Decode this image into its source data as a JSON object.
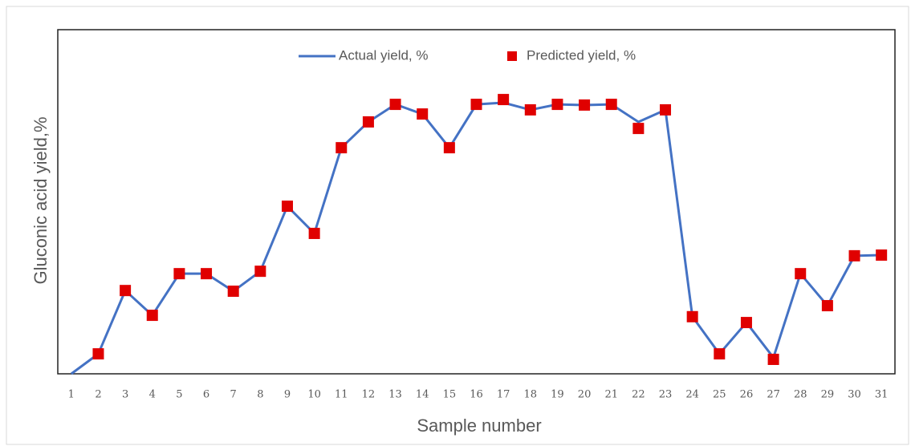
{
  "chart_data": {
    "type": "line_scatter",
    "x_label": "Sample number",
    "y_label": "Gluconic acid yield,%",
    "categories": [
      "1",
      "2",
      "3",
      "4",
      "5",
      "6",
      "7",
      "8",
      "9",
      "10",
      "11",
      "12",
      "13",
      "14",
      "15",
      "16",
      "17",
      "18",
      "19",
      "20",
      "21",
      "22",
      "23",
      "24",
      "25",
      "26",
      "27",
      "28",
      "29",
      "30",
      "31"
    ],
    "series": [
      {
        "name": "Actual yield, %",
        "color": "#4472c4",
        "kind": "line",
        "values": [
          0,
          5.8,
          24.2,
          17.0,
          29.1,
          29.1,
          24.0,
          29.8,
          48.7,
          40.8,
          65.7,
          73.2,
          78.3,
          75.5,
          65.7,
          78.3,
          78.8,
          76.7,
          78.3,
          78.1,
          78.3,
          73.2,
          76.7,
          16.6,
          5.8,
          14.9,
          4.7,
          29.1,
          19.8,
          34.3,
          34.5
        ]
      },
      {
        "name": "Predicted yield, %",
        "color": "#e00000",
        "kind": "marker",
        "values": [
          null,
          5.8,
          24.2,
          17.0,
          29.1,
          29.1,
          24.0,
          29.8,
          48.7,
          40.8,
          65.7,
          73.2,
          78.3,
          75.5,
          65.7,
          78.3,
          79.7,
          76.7,
          78.3,
          78.1,
          78.3,
          71.3,
          76.7,
          16.6,
          5.8,
          14.9,
          4.2,
          29.1,
          19.8,
          34.3,
          34.5
        ]
      }
    ],
    "ylim": [
      0,
      100
    ],
    "legend": "top"
  }
}
